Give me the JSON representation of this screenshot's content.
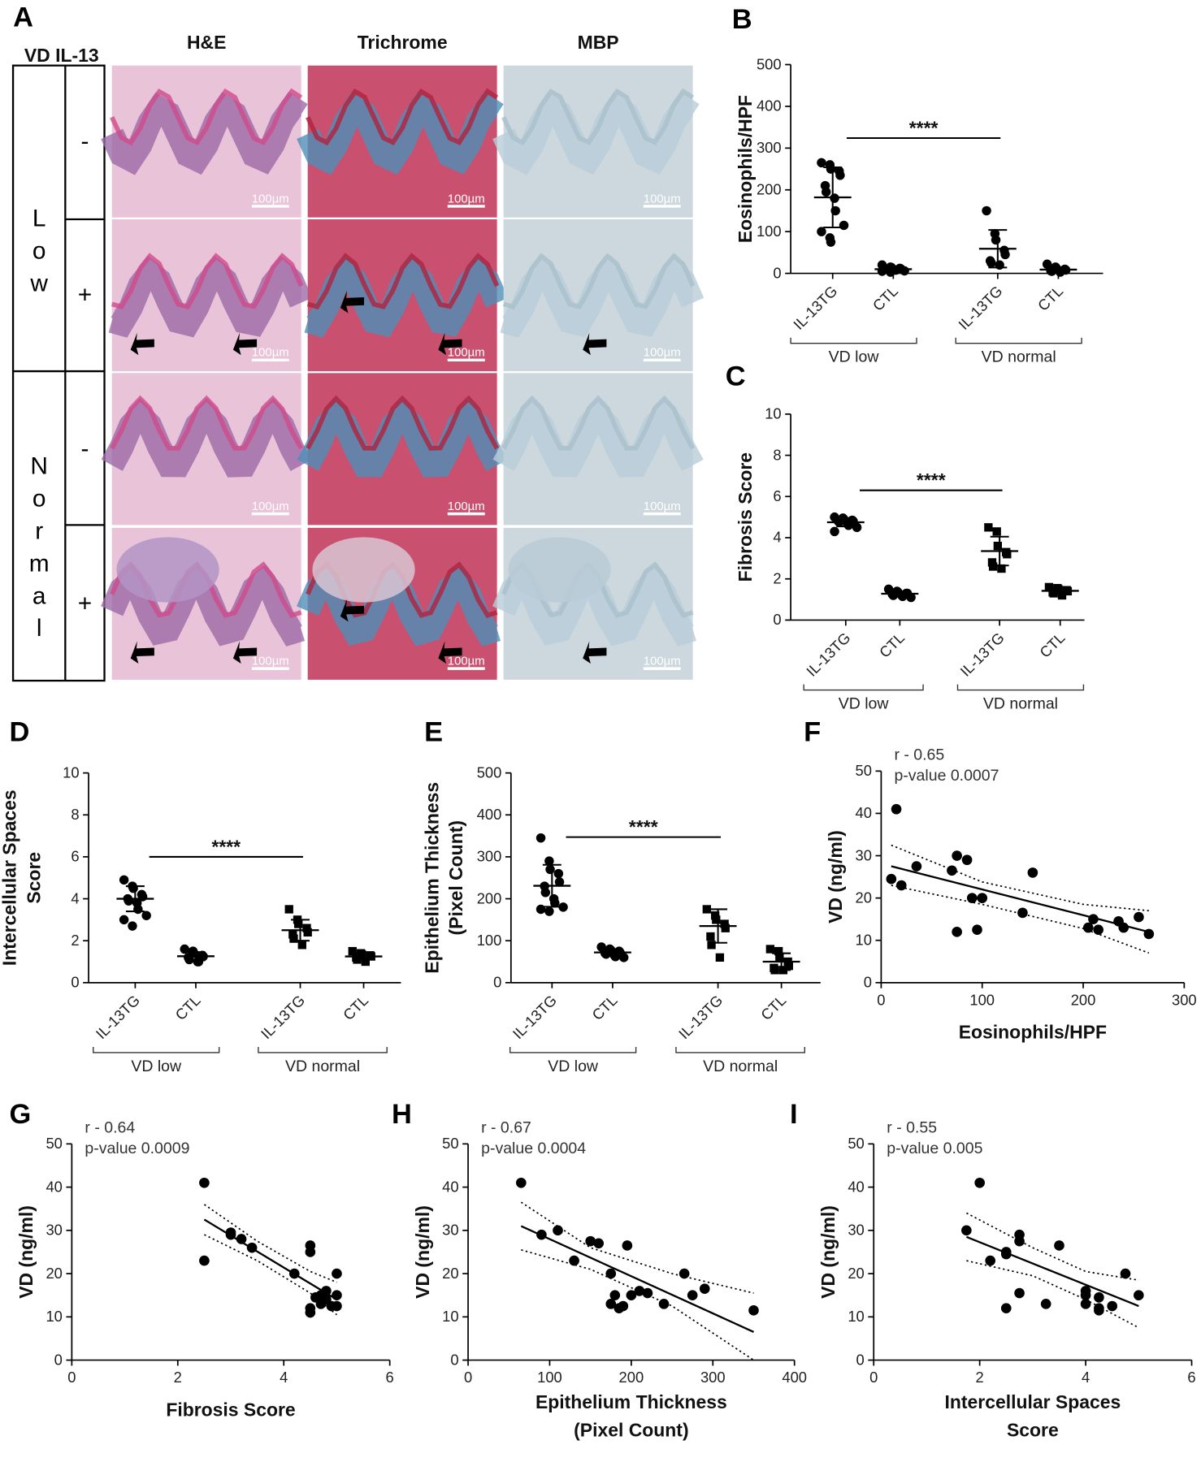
{
  "panel_a": {
    "label": "A",
    "header": "VD IL-13",
    "columns": [
      "H&E",
      "Trichrome",
      "MBP"
    ],
    "groups": [
      "Low",
      "Normal"
    ],
    "il13": [
      "-",
      "+"
    ],
    "scale_bar": "100µm"
  },
  "chart_data": [
    {
      "type": "strip",
      "panel": "B",
      "ylabel": "Eosinophils/HPF",
      "categories": [
        "IL-13TG",
        "CTL",
        "IL-13TG",
        "CTL"
      ],
      "groups": [
        "VD low",
        "VD normal"
      ],
      "ylim": [
        0,
        500
      ],
      "yticks": [
        0,
        100,
        200,
        300,
        400,
        500
      ],
      "series": [
        {
          "color": "#000000",
          "marker": "circle",
          "values": [
            265,
            260,
            250,
            245,
            235,
            210,
            195,
            180,
            150,
            115,
            100,
            85,
            75
          ],
          "mean": 182,
          "sd": 72
        },
        {
          "color": "#000000",
          "marker": "circle",
          "values": [
            20,
            15,
            14,
            12,
            11,
            10,
            10,
            8,
            8,
            6,
            5,
            3
          ],
          "mean": 10,
          "sd": 5
        },
        {
          "color": "#000000",
          "marker": "circle",
          "values": [
            150,
            95,
            80,
            55,
            45,
            30,
            25,
            20
          ],
          "mean": 59,
          "sd": 45
        },
        {
          "color": "#000000",
          "marker": "circle",
          "values": [
            22,
            15,
            12,
            10,
            8,
            6,
            5,
            3
          ],
          "mean": 9,
          "sd": 6
        }
      ],
      "significance": {
        "text": "****",
        "level": 324
      }
    },
    {
      "type": "strip",
      "panel": "C",
      "ylabel": "Fibrosis Score",
      "categories": [
        "IL-13TG",
        "CTL",
        "IL-13TG",
        "CTL"
      ],
      "groups": [
        "VD low",
        "VD normal"
      ],
      "ylim": [
        0,
        10
      ],
      "yticks": [
        0,
        2,
        4,
        6,
        8,
        10
      ],
      "series": [
        {
          "color": "#000000",
          "marker": "circle",
          "values": [
            5.0,
            4.95,
            4.9,
            4.85,
            4.8,
            4.8,
            4.75,
            4.7,
            4.6,
            4.5,
            4.3
          ],
          "mean": 4.75,
          "sd": 0.2
        },
        {
          "color": "#000000",
          "marker": "circle",
          "values": [
            1.5,
            1.4,
            1.35,
            1.3,
            1.3,
            1.25,
            1.2,
            1.2,
            1.15,
            1.1
          ],
          "mean": 1.28,
          "sd": 0.1
        },
        {
          "color": "#000000",
          "marker": "square",
          "values": [
            4.5,
            4.3,
            3.6,
            3.3,
            3.2,
            2.8,
            2.6,
            2.5
          ],
          "mean": 3.35,
          "sd": 0.7
        },
        {
          "color": "#000000",
          "marker": "square",
          "values": [
            1.6,
            1.55,
            1.5,
            1.45,
            1.4,
            1.35,
            1.3,
            1.2
          ],
          "mean": 1.42,
          "sd": 0.15
        }
      ],
      "significance": {
        "text": "****",
        "level": 6.3
      }
    },
    {
      "type": "strip",
      "panel": "D",
      "ylabel": [
        "Intercellular Spaces",
        "Score"
      ],
      "categories": [
        "IL-13TG",
        "CTL",
        "IL-13TG",
        "CTL"
      ],
      "groups": [
        "VD low",
        "VD normal"
      ],
      "ylim": [
        0,
        10
      ],
      "yticks": [
        0,
        2,
        4,
        6,
        8,
        10
      ],
      "series": [
        {
          "color": "#000000",
          "marker": "circle",
          "values": [
            4.9,
            4.6,
            4.5,
            4.2,
            4.1,
            4.0,
            3.9,
            3.8,
            3.5,
            3.2,
            3.0,
            2.7
          ],
          "mean": 4.0,
          "sd": 0.6
        },
        {
          "color": "#000000",
          "marker": "circle",
          "values": [
            1.6,
            1.5,
            1.4,
            1.3,
            1.25,
            1.2,
            1.1,
            1.0,
            1.0
          ],
          "mean": 1.26,
          "sd": 0.2
        },
        {
          "color": "#000000",
          "marker": "square",
          "values": [
            3.5,
            3.0,
            2.8,
            2.6,
            2.4,
            2.3,
            2.1,
            1.8
          ],
          "mean": 2.5,
          "sd": 0.5
        },
        {
          "color": "#000000",
          "marker": "square",
          "values": [
            1.5,
            1.4,
            1.35,
            1.3,
            1.25,
            1.2,
            1.1,
            1.0
          ],
          "mean": 1.25,
          "sd": 0.15
        }
      ],
      "significance": {
        "text": "****",
        "level": 6.0
      }
    },
    {
      "type": "strip",
      "panel": "E",
      "ylabel": [
        "Epithelium Thickness",
        "(Pixel Count)"
      ],
      "categories": [
        "IL-13TG",
        "CTL",
        "IL-13TG",
        "CTL"
      ],
      "groups": [
        "VD low",
        "VD normal"
      ],
      "ylim": [
        0,
        500
      ],
      "yticks": [
        0,
        100,
        200,
        300,
        400,
        500
      ],
      "series": [
        {
          "color": "#000000",
          "marker": "circle",
          "values": [
            345,
            290,
            270,
            260,
            240,
            230,
            215,
            200,
            190,
            180,
            175,
            170
          ],
          "mean": 231,
          "sd": 50
        },
        {
          "color": "#000000",
          "marker": "circle",
          "values": [
            85,
            80,
            78,
            75,
            72,
            70,
            68,
            65,
            62,
            60
          ],
          "mean": 72,
          "sd": 8
        },
        {
          "color": "#000000",
          "marker": "square",
          "values": [
            175,
            160,
            150,
            140,
            130,
            110,
            90,
            60
          ],
          "mean": 135,
          "sd": 40
        },
        {
          "color": "#000000",
          "marker": "square",
          "values": [
            80,
            75,
            60,
            50,
            40,
            35,
            30,
            30
          ],
          "mean": 50,
          "sd": 20
        }
      ],
      "significance": {
        "text": "****",
        "level": 347
      }
    },
    {
      "type": "scatter",
      "panel": "F",
      "xlabel": "Eosinophils/HPF",
      "ylabel": "VD (ng/ml)",
      "annotations": [
        "r - 0.65",
        "p-value 0.0007"
      ],
      "xlim": [
        0,
        300
      ],
      "xticks": [
        0,
        100,
        200,
        300
      ],
      "ylim": [
        0,
        50
      ],
      "yticks": [
        0,
        10,
        20,
        30,
        40,
        50
      ],
      "color": "#000000",
      "x": [
        15,
        10,
        20,
        35,
        70,
        75,
        85,
        75,
        90,
        95,
        100,
        140,
        150,
        205,
        210,
        215,
        240,
        235,
        255,
        265
      ],
      "y": [
        41,
        24.5,
        23,
        27.5,
        26.5,
        30,
        29,
        12,
        20,
        12.5,
        20,
        16.5,
        26,
        13,
        15,
        12.5,
        13,
        14.5,
        15.5,
        11.5
      ],
      "fit": {
        "x": [
          10,
          268
        ],
        "y": [
          27.5,
          11.8
        ]
      },
      "ci": {
        "x": [
          10,
          100,
          200,
          265
        ],
        "upper": [
          32.5,
          23.8,
          18.5,
          17
        ],
        "lower": [
          23,
          18.5,
          12.8,
          7
        ]
      }
    },
    {
      "type": "scatter",
      "panel": "G",
      "xlabel": "Fibrosis Score",
      "ylabel": "VD (ng/ml)",
      "annotations": [
        "r - 0.64",
        "p-value 0.0009"
      ],
      "xlim": [
        0,
        6
      ],
      "xticks": [
        0,
        2,
        4,
        6
      ],
      "ylim": [
        0,
        50
      ],
      "yticks": [
        0,
        10,
        20,
        30,
        40,
        50
      ],
      "color": "#000000",
      "x": [
        2.5,
        2.5,
        3,
        3,
        3.2,
        3.4,
        4.2,
        4.5,
        4.5,
        4.5,
        4.5,
        4.7,
        4.7,
        4.8,
        4.8,
        5,
        5,
        5,
        4.6,
        4.9
      ],
      "y": [
        41,
        23,
        29.5,
        29,
        28,
        26,
        20,
        26.5,
        25,
        12,
        11,
        15,
        13,
        16,
        14,
        20,
        15,
        12.5,
        14.5,
        12.5
      ],
      "fit": {
        "x": [
          2.5,
          5
        ],
        "y": [
          32.5,
          14
        ]
      },
      "ci": {
        "x": [
          2.5,
          3.5,
          4.5,
          5
        ],
        "upper": [
          36,
          27.5,
          20.5,
          18
        ],
        "lower": [
          29,
          23,
          15.5,
          10.5
        ]
      }
    },
    {
      "type": "scatter",
      "panel": "H",
      "xlabel": [
        "Epithelium Thickness",
        "(Pixel Count)"
      ],
      "ylabel": "VD (ng/ml)",
      "annotations": [
        "r - 0.67",
        "p-value 0.0004"
      ],
      "xlim": [
        0,
        400
      ],
      "xticks": [
        0,
        100,
        200,
        300,
        400
      ],
      "ylim": [
        0,
        50
      ],
      "yticks": [
        0,
        10,
        20,
        30,
        40,
        50
      ],
      "color": "#000000",
      "x": [
        65,
        90,
        110,
        130,
        150,
        160,
        175,
        180,
        175,
        190,
        185,
        195,
        200,
        210,
        220,
        240,
        265,
        275,
        290,
        350
      ],
      "y": [
        41,
        29,
        30,
        23,
        27.5,
        27,
        20,
        15,
        13,
        12.5,
        12,
        26.5,
        15,
        16,
        15.5,
        13,
        20,
        15,
        16.5,
        11.5
      ],
      "fit": {
        "x": [
          65,
          350
        ],
        "y": [
          31,
          6.5
        ]
      },
      "ci": {
        "x": [
          65,
          150,
          250,
          350
        ],
        "upper": [
          36.5,
          26,
          20,
          15.5
        ],
        "lower": [
          25.5,
          21,
          12.5,
          0
        ]
      }
    },
    {
      "type": "scatter",
      "panel": "I",
      "xlabel": [
        "Intercellular Spaces",
        "Score"
      ],
      "ylabel": "VD (ng/ml)",
      "annotations": [
        "r - 0.55",
        "p-value 0.005"
      ],
      "xlim": [
        0,
        6
      ],
      "xticks": [
        0,
        2,
        4,
        6
      ],
      "ylim": [
        0,
        50
      ],
      "yticks": [
        0,
        10,
        20,
        30,
        40,
        50
      ],
      "color": "#000000",
      "x": [
        1.75,
        2,
        2.2,
        2.5,
        2.5,
        2.5,
        2.75,
        2.75,
        2.75,
        3.25,
        3.5,
        4,
        4,
        4,
        4.25,
        4.25,
        4.5,
        4.75,
        5,
        4.25
      ],
      "y": [
        30,
        41,
        23,
        25,
        24.5,
        12,
        29,
        27.5,
        15.5,
        13,
        26.5,
        16,
        15,
        13,
        14.5,
        11.5,
        12.5,
        20,
        15,
        12
      ],
      "fit": {
        "x": [
          1.75,
          5
        ],
        "y": [
          28.5,
          12.5
        ]
      },
      "ci": {
        "x": [
          1.75,
          3,
          4,
          5
        ],
        "upper": [
          34,
          26,
          20.5,
          18.5
        ],
        "lower": [
          23,
          19.5,
          14,
          7.5
        ]
      }
    }
  ]
}
